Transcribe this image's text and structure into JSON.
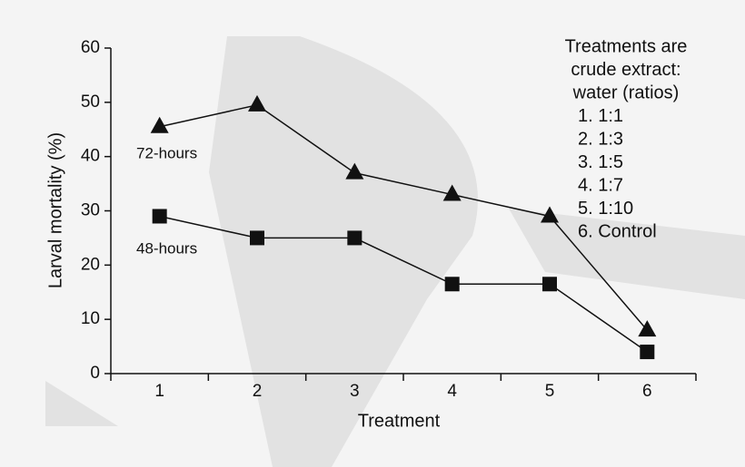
{
  "chart_data": {
    "type": "line",
    "x_label": "Treatment",
    "y_label": "Larval mortality (%)",
    "categories": [
      "1",
      "2",
      "3",
      "4",
      "5",
      "6"
    ],
    "series": [
      {
        "name": "72-hours",
        "marker": "triangle",
        "color": "#111111",
        "values": [
          45.5,
          49.5,
          37,
          33,
          29,
          8
        ]
      },
      {
        "name": "48-hours",
        "marker": "square",
        "color": "#111111",
        "values": [
          29,
          25,
          25,
          16.5,
          16.5,
          4
        ]
      }
    ],
    "ylim": [
      0,
      60
    ],
    "yticks": [
      0,
      10,
      20,
      30,
      40,
      50,
      60
    ],
    "note": [
      "Treatments are",
      "crude extract:",
      "water (ratios)",
      "1. 1:1",
      "2. 1:3",
      "3. 1:5",
      "4. 1:7",
      "5. 1:10",
      "6. Control"
    ]
  }
}
